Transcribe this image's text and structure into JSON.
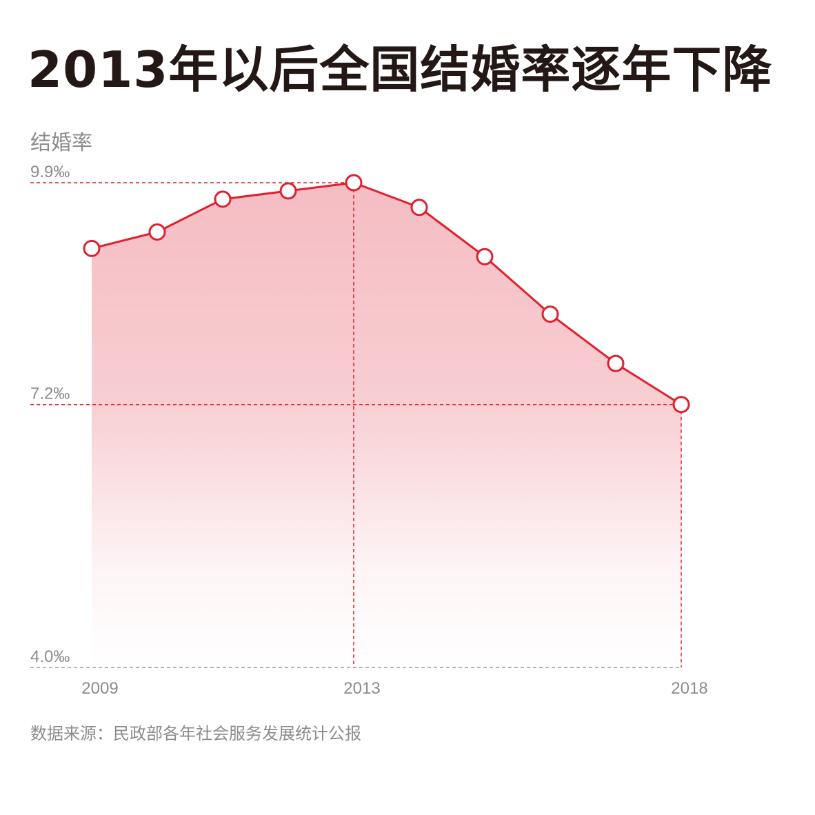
{
  "title": "2013年以后全国结婚率逐年下降",
  "source": "数据来源：民政部各年社会服务发展统计公报",
  "colors": {
    "line": "#e0202e",
    "fill": "#f4b9bf",
    "dashed_red": "#e0202e",
    "dashed_gray": "#999999",
    "title": "#231815",
    "label": "#8c8c8c"
  },
  "chart_data": {
    "type": "line",
    "ylabel": "结婚率",
    "xlabel": "",
    "x": [
      2009,
      2010,
      2011,
      2012,
      2013,
      2014,
      2015,
      2016,
      2017,
      2018
    ],
    "series": [
      {
        "values": [
          9.1,
          9.3,
          9.7,
          9.8,
          9.9,
          9.6,
          9.0,
          8.3,
          7.7,
          7.2
        ]
      }
    ],
    "ylim": [
      4.0,
      9.9
    ],
    "y_ticks": [
      {
        "value": 9.9,
        "label": "9.9‰"
      },
      {
        "value": 7.2,
        "label": "7.2‰"
      },
      {
        "value": 4.0,
        "label": "4.0‰"
      }
    ],
    "x_ticks": [
      {
        "value": 2009,
        "label": "2009"
      },
      {
        "value": 2013,
        "label": "2013"
      },
      {
        "value": 2018,
        "label": "2018"
      }
    ],
    "grid": false,
    "legend": "none"
  }
}
